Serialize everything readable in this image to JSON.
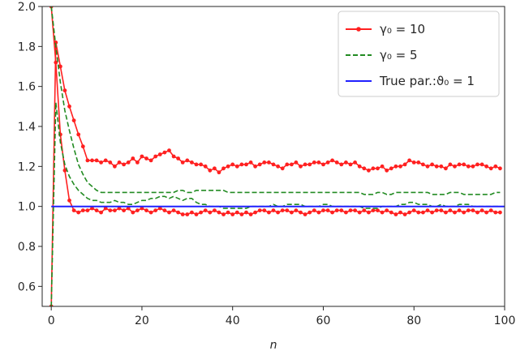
{
  "chart_data": {
    "type": "line",
    "xlabel": "n",
    "ylabel": "",
    "xlim": [
      -2,
      100
    ],
    "ylim": [
      0.5,
      2.0
    ],
    "xticks": [
      0,
      20,
      40,
      60,
      80,
      100
    ],
    "yticks": [
      0.6,
      0.8,
      1.0,
      1.2,
      1.4,
      1.6,
      1.8,
      2.0
    ],
    "xtick_labels": [
      "0",
      "20",
      "40",
      "60",
      "80",
      "100"
    ],
    "ytick_labels": [
      "0.6",
      "0.8",
      "1.0",
      "1.2",
      "1.4",
      "1.6",
      "1.8",
      "2.0"
    ],
    "grid": false,
    "legend_position": "upper-right",
    "legend": [
      {
        "label": "γ₀ = 10",
        "color": "#ff2020",
        "style": "solid-marker"
      },
      {
        "label": "γ₀ = 5",
        "color": "#228b22",
        "style": "dashed"
      },
      {
        "label": "True par.:ϑ₀ = 1",
        "color": "#2020ff",
        "style": "solid"
      }
    ],
    "series": [
      {
        "name": "γ₀ = 10",
        "role": "upper",
        "color": "#ff2020",
        "x": [
          0,
          1,
          2,
          3,
          4,
          5,
          6,
          7,
          8,
          9,
          10,
          11,
          12,
          13,
          14,
          15,
          16,
          17,
          18,
          19,
          20,
          21,
          22,
          23,
          24,
          25,
          26,
          27,
          28,
          29,
          30,
          31,
          32,
          33,
          34,
          35,
          36,
          37,
          38,
          39,
          40,
          41,
          42,
          43,
          44,
          45,
          46,
          47,
          48,
          49,
          50,
          51,
          52,
          53,
          54,
          55,
          56,
          57,
          58,
          59,
          60,
          61,
          62,
          63,
          64,
          65,
          66,
          67,
          68,
          69,
          70,
          71,
          72,
          73,
          74,
          75,
          76,
          77,
          78,
          79,
          80,
          81,
          82,
          83,
          84,
          85,
          86,
          87,
          88,
          89,
          90,
          91,
          92,
          93,
          94,
          95,
          96,
          97,
          98,
          99
        ],
        "y": [
          0.5,
          1.82,
          1.7,
          1.58,
          1.5,
          1.43,
          1.36,
          1.3,
          1.23,
          1.23,
          1.23,
          1.22,
          1.23,
          1.22,
          1.2,
          1.22,
          1.21,
          1.22,
          1.24,
          1.22,
          1.25,
          1.24,
          1.23,
          1.25,
          1.26,
          1.27,
          1.28,
          1.25,
          1.24,
          1.22,
          1.23,
          1.22,
          1.21,
          1.21,
          1.2,
          1.18,
          1.19,
          1.17,
          1.19,
          1.2,
          1.21,
          1.2,
          1.21,
          1.21,
          1.22,
          1.2,
          1.21,
          1.22,
          1.22,
          1.21,
          1.2,
          1.19,
          1.21,
          1.21,
          1.22,
          1.2,
          1.21,
          1.21,
          1.22,
          1.22,
          1.21,
          1.22,
          1.23,
          1.22,
          1.21,
          1.22,
          1.21,
          1.22,
          1.2,
          1.19,
          1.18,
          1.19,
          1.19,
          1.2,
          1.18,
          1.19,
          1.2,
          1.2,
          1.21,
          1.23,
          1.22,
          1.22,
          1.21,
          1.2,
          1.21,
          1.2,
          1.2,
          1.19,
          1.21,
          1.2,
          1.21,
          1.21,
          1.2,
          1.2,
          1.21,
          1.21,
          1.2,
          1.19,
          1.2,
          1.19
        ]
      },
      {
        "name": "γ₀ = 10",
        "role": "lower",
        "color": "#ff2020",
        "x": [
          0,
          1,
          2,
          3,
          4,
          5,
          6,
          7,
          8,
          9,
          10,
          11,
          12,
          13,
          14,
          15,
          16,
          17,
          18,
          19,
          20,
          21,
          22,
          23,
          24,
          25,
          26,
          27,
          28,
          29,
          30,
          31,
          32,
          33,
          34,
          35,
          36,
          37,
          38,
          39,
          40,
          41,
          42,
          43,
          44,
          45,
          46,
          47,
          48,
          49,
          50,
          51,
          52,
          53,
          54,
          55,
          56,
          57,
          58,
          59,
          60,
          61,
          62,
          63,
          64,
          65,
          66,
          67,
          68,
          69,
          70,
          71,
          72,
          73,
          74,
          75,
          76,
          77,
          78,
          79,
          80,
          81,
          82,
          83,
          84,
          85,
          86,
          87,
          88,
          89,
          90,
          91,
          92,
          93,
          94,
          95,
          96,
          97,
          98,
          99
        ],
        "y": [
          2.0,
          1.72,
          1.36,
          1.18,
          1.03,
          0.98,
          0.97,
          0.98,
          0.98,
          0.99,
          0.98,
          0.97,
          0.99,
          0.98,
          0.98,
          0.99,
          0.98,
          0.99,
          0.97,
          0.98,
          0.99,
          0.98,
          0.97,
          0.98,
          0.99,
          0.98,
          0.97,
          0.98,
          0.97,
          0.96,
          0.96,
          0.97,
          0.96,
          0.97,
          0.98,
          0.97,
          0.98,
          0.97,
          0.96,
          0.97,
          0.96,
          0.97,
          0.96,
          0.97,
          0.96,
          0.97,
          0.98,
          0.98,
          0.97,
          0.98,
          0.97,
          0.98,
          0.98,
          0.97,
          0.98,
          0.97,
          0.96,
          0.97,
          0.98,
          0.97,
          0.98,
          0.98,
          0.97,
          0.98,
          0.98,
          0.97,
          0.98,
          0.98,
          0.97,
          0.98,
          0.97,
          0.98,
          0.98,
          0.97,
          0.98,
          0.97,
          0.96,
          0.97,
          0.96,
          0.97,
          0.98,
          0.97,
          0.97,
          0.98,
          0.97,
          0.98,
          0.98,
          0.97,
          0.98,
          0.97,
          0.98,
          0.97,
          0.98,
          0.98,
          0.97,
          0.98,
          0.97,
          0.98,
          0.97,
          0.97
        ]
      },
      {
        "name": "γ₀ = 5",
        "role": "upper",
        "color": "#228b22",
        "x": [
          0,
          1,
          2,
          3,
          4,
          5,
          6,
          7,
          8,
          9,
          10,
          11,
          12,
          13,
          14,
          15,
          16,
          17,
          18,
          19,
          20,
          21,
          22,
          23,
          24,
          25,
          26,
          27,
          28,
          29,
          30,
          31,
          32,
          33,
          34,
          35,
          36,
          37,
          38,
          39,
          40,
          41,
          42,
          43,
          44,
          45,
          46,
          47,
          48,
          49,
          50,
          51,
          52,
          53,
          54,
          55,
          56,
          57,
          58,
          59,
          60,
          61,
          62,
          63,
          64,
          65,
          66,
          67,
          68,
          69,
          70,
          71,
          72,
          73,
          74,
          75,
          76,
          77,
          78,
          79,
          80,
          81,
          82,
          83,
          84,
          85,
          86,
          87,
          88,
          89,
          90,
          91,
          92,
          93,
          94,
          95,
          96,
          97,
          98,
          99
        ],
        "y": [
          2.0,
          1.8,
          1.62,
          1.48,
          1.38,
          1.29,
          1.21,
          1.16,
          1.12,
          1.1,
          1.08,
          1.07,
          1.07,
          1.07,
          1.07,
          1.07,
          1.07,
          1.07,
          1.07,
          1.07,
          1.07,
          1.07,
          1.07,
          1.07,
          1.07,
          1.07,
          1.07,
          1.07,
          1.08,
          1.08,
          1.07,
          1.07,
          1.08,
          1.08,
          1.08,
          1.08,
          1.08,
          1.08,
          1.08,
          1.07,
          1.07,
          1.07,
          1.07,
          1.07,
          1.07,
          1.07,
          1.07,
          1.07,
          1.07,
          1.07,
          1.07,
          1.07,
          1.07,
          1.07,
          1.07,
          1.07,
          1.07,
          1.07,
          1.07,
          1.07,
          1.07,
          1.07,
          1.07,
          1.07,
          1.07,
          1.07,
          1.07,
          1.07,
          1.07,
          1.06,
          1.06,
          1.06,
          1.07,
          1.07,
          1.06,
          1.06,
          1.07,
          1.07,
          1.07,
          1.07,
          1.07,
          1.07,
          1.07,
          1.07,
          1.06,
          1.06,
          1.06,
          1.06,
          1.07,
          1.07,
          1.07,
          1.06,
          1.06,
          1.06,
          1.06,
          1.06,
          1.06,
          1.06,
          1.07,
          1.07
        ]
      },
      {
        "name": "γ₀ = 5",
        "role": "lower",
        "color": "#228b22",
        "x": [
          0,
          1,
          2,
          3,
          4,
          5,
          6,
          7,
          8,
          9,
          10,
          11,
          12,
          13,
          14,
          15,
          16,
          17,
          18,
          19,
          20,
          21,
          22,
          23,
          24,
          25,
          26,
          27,
          28,
          29,
          30,
          31,
          32,
          33,
          34,
          35,
          36,
          37,
          38,
          39,
          40,
          41,
          42,
          43,
          44,
          45,
          46,
          47,
          48,
          49,
          50,
          51,
          52,
          53,
          54,
          55,
          56,
          57,
          58,
          59,
          60,
          61,
          62,
          63,
          64,
          65,
          66,
          67,
          68,
          69,
          70,
          71,
          72,
          73,
          74,
          75,
          76,
          77,
          78,
          79,
          80,
          81,
          82,
          83,
          84,
          85,
          86,
          87,
          88,
          89,
          90,
          91,
          92,
          93,
          94,
          95,
          96,
          97,
          98,
          99
        ],
        "y": [
          0.5,
          1.52,
          1.32,
          1.21,
          1.15,
          1.11,
          1.08,
          1.06,
          1.04,
          1.03,
          1.03,
          1.02,
          1.02,
          1.02,
          1.03,
          1.02,
          1.02,
          1.01,
          1.01,
          1.02,
          1.03,
          1.03,
          1.04,
          1.04,
          1.05,
          1.05,
          1.04,
          1.05,
          1.04,
          1.03,
          1.04,
          1.04,
          1.02,
          1.01,
          1.01,
          1.0,
          1.0,
          1.0,
          0.99,
          0.99,
          0.99,
          0.99,
          0.99,
          0.99,
          1.0,
          1.0,
          1.0,
          1.0,
          1.0,
          1.01,
          1.0,
          1.0,
          1.01,
          1.01,
          1.01,
          1.01,
          1.0,
          1.0,
          1.0,
          1.0,
          1.01,
          1.01,
          1.0,
          1.0,
          1.0,
          1.0,
          1.0,
          1.0,
          1.0,
          0.99,
          0.99,
          0.99,
          0.99,
          1.0,
          1.0,
          1.0,
          1.0,
          1.01,
          1.01,
          1.02,
          1.02,
          1.01,
          1.01,
          1.01,
          1.0,
          1.0,
          1.01,
          1.0,
          1.0,
          1.0,
          1.01,
          1.01,
          1.01,
          1.0,
          1.0,
          1.0,
          1.0,
          1.0,
          1.0,
          1.0
        ]
      },
      {
        "name": "True par.:ϑ₀ = 1",
        "color": "#2020ff",
        "x": [
          0,
          100
        ],
        "y": [
          1.0,
          1.0
        ]
      }
    ]
  }
}
